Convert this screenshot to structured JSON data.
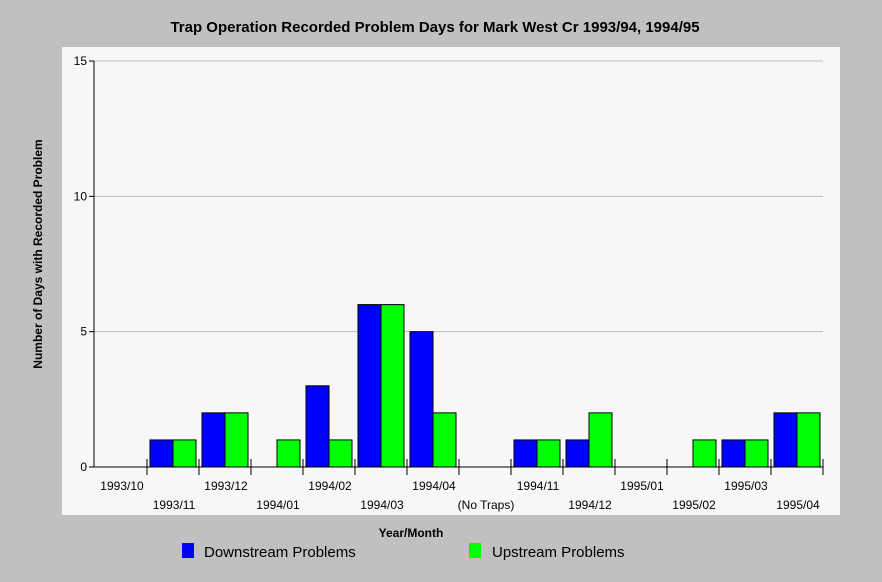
{
  "chart_data": {
    "type": "bar",
    "title": "Trap Operation Recorded Problem Days for Mark West Cr 1993/94, 1994/95",
    "xlabel": "Year/Month",
    "ylabel": "Number of Days with Recorded Problem",
    "ylim": [
      0,
      15
    ],
    "yticks": [
      "0",
      "5",
      "10",
      "15"
    ],
    "grid": true,
    "legend_position": "bottom",
    "categories": [
      "1993/10",
      "1993/11",
      "1993/12",
      "1994/01",
      "1994/02",
      "1994/03",
      "1994/04",
      "(No Traps)",
      "1994/11",
      "1994/12",
      "1995/01",
      "1995/02",
      "1995/03",
      "1995/04"
    ],
    "series": [
      {
        "name": "Downstream Problems",
        "color": "#0000ff",
        "values": [
          0,
          1,
          2,
          0,
          3,
          6,
          5,
          0,
          1,
          1,
          0,
          0,
          1,
          2
        ]
      },
      {
        "name": "Upstream Problems",
        "color": "#00ff00",
        "values": [
          0,
          1,
          2,
          1,
          1,
          6,
          2,
          0,
          1,
          2,
          0,
          1,
          1,
          2
        ]
      }
    ]
  }
}
